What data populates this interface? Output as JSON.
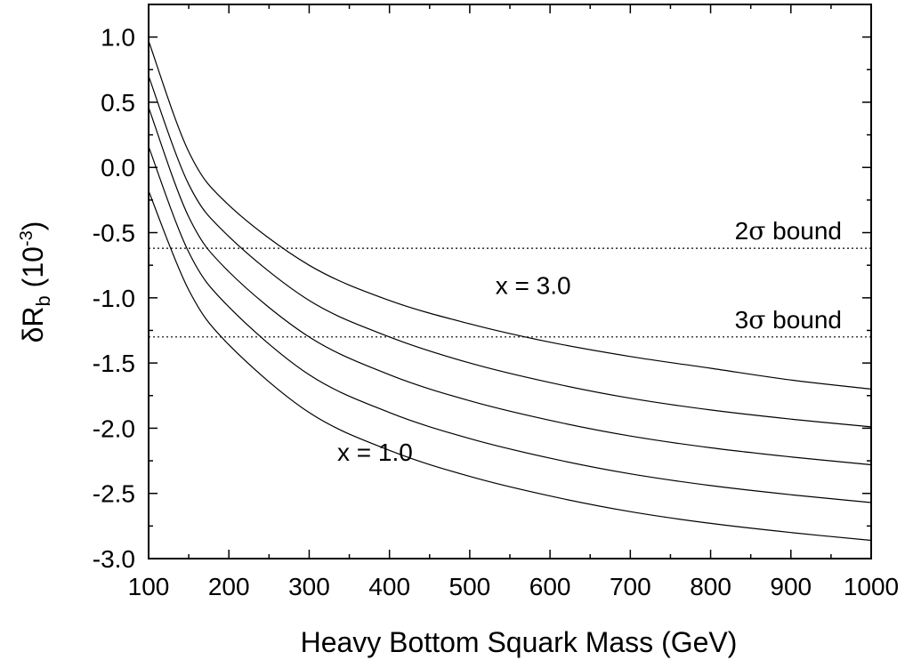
{
  "chart_data": {
    "type": "line",
    "title": "",
    "xlabel": "Heavy Bottom Squark Mass (GeV)",
    "ylabel": {
      "main": "δR",
      "sub": "b",
      "unit_open": " (10",
      "unit_sup": "-3",
      "unit_close": ")"
    },
    "xlim": [
      100,
      1000
    ],
    "ylim": [
      -3.0,
      1.0
    ],
    "x_ticks": [
      100,
      200,
      300,
      400,
      500,
      600,
      700,
      800,
      900,
      1000
    ],
    "y_ticks": [
      1.0,
      0.5,
      0.0,
      -0.5,
      -1.0,
      -1.5,
      -2.0,
      -2.5,
      -3.0
    ],
    "x_tick_labels": [
      "100",
      "200",
      "300",
      "400",
      "500",
      "600",
      "700",
      "800",
      "900",
      "1000"
    ],
    "y_tick_labels": [
      "1.0",
      "0.5",
      "0.0",
      "-0.5",
      "-1.0",
      "-1.5",
      "-2.0",
      "-2.5",
      "-3.0"
    ],
    "grid": false,
    "x": [
      100,
      150,
      200,
      300,
      400,
      500,
      600,
      700,
      800,
      900,
      1000
    ],
    "series": [
      {
        "values": [
          0.97,
          0.12,
          -0.29,
          -0.75,
          -1.02,
          -1.2,
          -1.34,
          -1.45,
          -1.54,
          -1.63,
          -1.7
        ]
      },
      {
        "values": [
          0.7,
          -0.13,
          -0.53,
          -1.02,
          -1.3,
          -1.5,
          -1.65,
          -1.77,
          -1.86,
          -1.93,
          -1.99
        ]
      },
      {
        "values": [
          0.46,
          -0.38,
          -0.8,
          -1.3,
          -1.59,
          -1.79,
          -1.94,
          -2.06,
          -2.15,
          -2.22,
          -2.28
        ]
      },
      {
        "values": [
          0.16,
          -0.65,
          -1.07,
          -1.59,
          -1.88,
          -2.08,
          -2.23,
          -2.35,
          -2.44,
          -2.51,
          -2.57
        ]
      },
      {
        "values": [
          -0.18,
          -0.94,
          -1.36,
          -1.88,
          -2.17,
          -2.37,
          -2.52,
          -2.64,
          -2.73,
          -2.8,
          -2.86
        ]
      }
    ],
    "bounds": [
      {
        "label_main": "2",
        "label_sym": "σ",
        "label_rest": " bound",
        "y": -0.62
      },
      {
        "label_main": "3",
        "label_sym": "σ",
        "label_rest": " bound",
        "y": -1.3
      }
    ],
    "annotations": [
      {
        "text": "x = 3.0",
        "x": 532,
        "y": -0.97
      },
      {
        "text": "x = 1.0",
        "x": 335,
        "y": -2.25
      }
    ]
  }
}
